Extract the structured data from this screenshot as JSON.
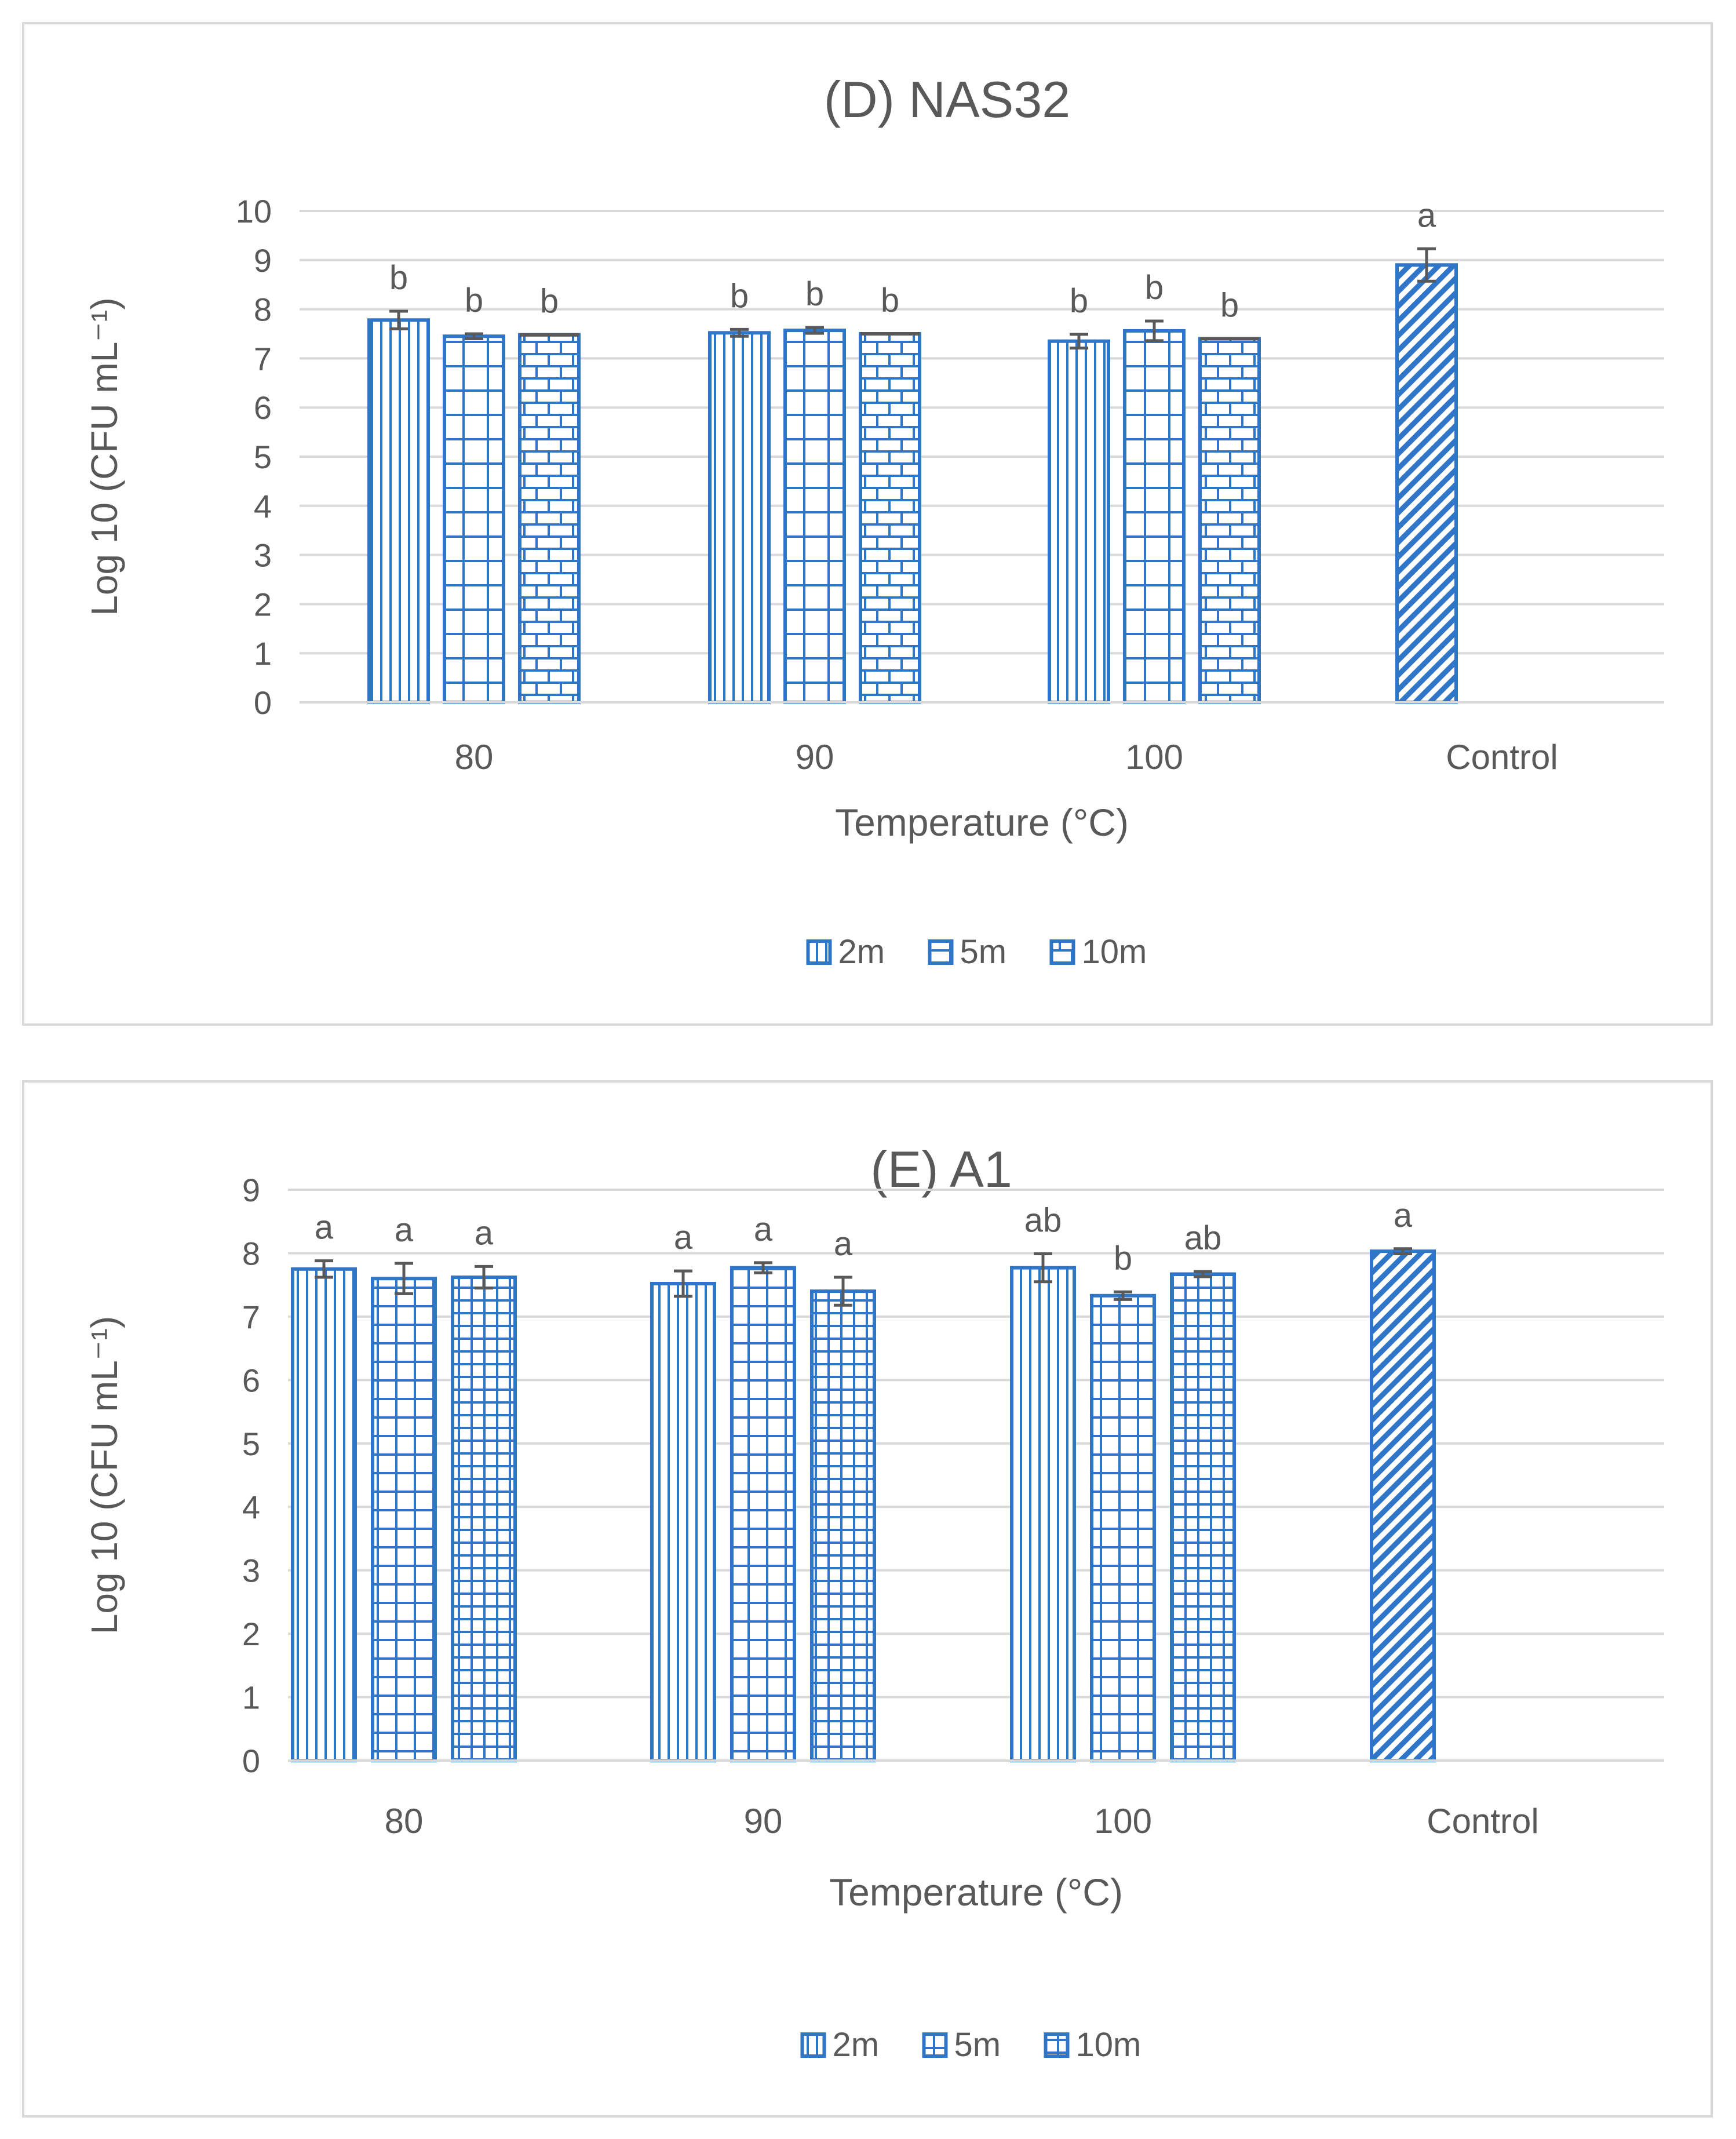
{
  "chart_data": [
    {
      "type": "bar",
      "title": "(D) NAS32",
      "xlabel": "Temperature (°C)",
      "ylabel": "Log 10 (CFU mL⁻¹)",
      "ylim": [
        0,
        10
      ],
      "yticks": [
        0,
        1,
        2,
        3,
        4,
        5,
        6,
        7,
        8,
        9,
        10
      ],
      "grid": true,
      "legend_position": "bottom",
      "categories": [
        "80",
        "90",
        "100"
      ],
      "series": [
        {
          "name": "2m",
          "pattern": "vertical",
          "values": [
            7.78,
            7.52,
            7.35
          ],
          "errors": [
            0.18,
            0.07,
            0.14
          ],
          "letters": [
            "b",
            "b",
            "b"
          ]
        },
        {
          "name": "5m",
          "pattern": "grid",
          "values": [
            7.45,
            7.57,
            7.56
          ],
          "errors": [
            0.05,
            0.06,
            0.2
          ],
          "letters": [
            "b",
            "b",
            "b"
          ]
        },
        {
          "name": "10m",
          "pattern": "brick",
          "values": [
            7.48,
            7.5,
            7.4
          ],
          "errors": [
            0.0,
            0.0,
            0.0
          ],
          "letters": [
            "b",
            "b",
            "b"
          ]
        }
      ],
      "control": {
        "label": "Control",
        "value": 8.9,
        "error": 0.33,
        "letter": "a",
        "pattern": "diagonal"
      }
    },
    {
      "type": "bar",
      "title": "(E) A1",
      "xlabel": "Temperature (°C)",
      "ylabel": "Log 10 (CFU mL⁻¹)",
      "ylim": [
        0,
        9
      ],
      "yticks": [
        0,
        1,
        2,
        3,
        4,
        5,
        6,
        7,
        8,
        9
      ],
      "grid": true,
      "legend_position": "bottom",
      "categories": [
        "80",
        "90",
        "100"
      ],
      "series": [
        {
          "name": "2m",
          "pattern": "vertical",
          "values": [
            7.75,
            7.52,
            7.77
          ],
          "errors": [
            0.13,
            0.2,
            0.22
          ],
          "letters": [
            "a",
            "a",
            "ab"
          ]
        },
        {
          "name": "5m",
          "pattern": "fine-grid",
          "values": [
            7.6,
            7.77,
            7.33
          ],
          "errors": [
            0.24,
            0.08,
            0.06
          ],
          "letters": [
            "a",
            "a",
            "b"
          ]
        },
        {
          "name": "10m",
          "pattern": "fine-grid-dense",
          "values": [
            7.62,
            7.4,
            7.67
          ],
          "errors": [
            0.17,
            0.22,
            0.04
          ],
          "letters": [
            "a",
            "a",
            "ab"
          ]
        }
      ],
      "control": {
        "label": "Control",
        "value": 8.03,
        "error": 0.04,
        "letter": "a",
        "pattern": "diagonal"
      }
    }
  ]
}
